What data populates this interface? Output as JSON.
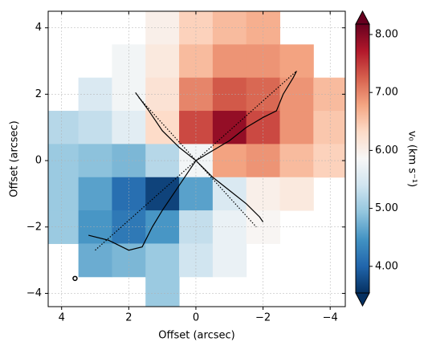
{
  "chart_data": {
    "type": "velocity_map",
    "xlabel": "Offset (arcsec)",
    "ylabel": "Offset (arcsec)",
    "colorbar_label": "v₀ (km s⁻¹)",
    "colormap": "RdBu_r",
    "xlim": [
      4.4,
      -4.45
    ],
    "ylim": [
      -4.4,
      4.5
    ],
    "xticks": [
      4,
      2,
      0,
      {
        "value": -2,
        "label": "−2"
      },
      {
        "value": -4,
        "label": "−4"
      }
    ],
    "yticks": [
      {
        "value": -4,
        "label": "−4"
      },
      {
        "value": -2,
        "label": "−2"
      },
      0,
      2,
      4
    ],
    "clim": [
      3.54,
      8.18
    ],
    "cticks": [
      {
        "value": 4,
        "label": "4.00"
      },
      {
        "value": 5,
        "label": "5.00"
      },
      {
        "value": 6,
        "label": "6.00"
      },
      {
        "value": 7,
        "label": "7.00"
      },
      {
        "value": 8,
        "label": "8.00"
      }
    ],
    "grid": true,
    "map": {
      "x": [
        4,
        3,
        2,
        1,
        0,
        -1,
        -2,
        -3,
        -4
      ],
      "y": [
        4,
        3,
        2,
        1,
        0,
        -1,
        -2,
        -3,
        -4
      ],
      "values": [
        [
          null,
          null,
          null,
          6.0,
          6.4,
          6.6,
          6.7,
          null,
          null
        ],
        [
          null,
          null,
          5.8,
          6.1,
          6.6,
          6.9,
          6.9,
          6.8,
          null
        ],
        [
          null,
          5.5,
          5.8,
          6.2,
          7.0,
          7.3,
          7.2,
          6.9,
          6.6
        ],
        [
          5.2,
          5.3,
          5.6,
          6.3,
          7.4,
          7.9,
          7.4,
          6.9,
          6.5
        ],
        [
          5.0,
          4.9,
          4.8,
          5.2,
          5.8,
          6.8,
          6.9,
          6.6,
          6.4
        ],
        [
          5.0,
          4.6,
          4.1,
          3.7,
          4.6,
          5.5,
          6.0,
          6.1,
          null
        ],
        [
          5.0,
          4.5,
          4.2,
          4.5,
          5.3,
          5.7,
          5.9,
          null,
          null
        ],
        [
          null,
          4.7,
          4.8,
          5.0,
          5.4,
          5.7,
          null,
          null,
          null
        ],
        [
          null,
          null,
          null,
          5.0,
          null,
          null,
          null,
          null,
          null
        ]
      ]
    },
    "curves": [
      {
        "style": "solid",
        "color": "#000000",
        "x": [
          3.2,
          2.6,
          2.0,
          1.6,
          1.3,
          1.0,
          0.6,
          0.2,
          0,
          -0.5,
          -1.0,
          -1.5,
          -2.0,
          -2.4,
          -2.6,
          -2.9,
          -3.0
        ],
        "y": [
          -2.25,
          -2.4,
          -2.7,
          -2.6,
          -2.0,
          -1.5,
          -0.9,
          -0.3,
          0,
          0.3,
          0.6,
          1.0,
          1.3,
          1.5,
          2.0,
          2.5,
          2.7
        ]
      },
      {
        "style": "dotted",
        "color": "#000000",
        "x": [
          3.0,
          -3.0
        ],
        "y": [
          -2.7,
          2.7
        ]
      },
      {
        "style": "solid",
        "color": "#000000",
        "x": [
          1.8,
          1.4,
          1.0,
          0.5,
          0,
          -0.5,
          -1.0,
          -1.5,
          -1.9,
          -2.0
        ],
        "y": [
          2.05,
          1.5,
          0.9,
          0.4,
          0,
          -0.5,
          -0.9,
          -1.3,
          -1.7,
          -1.85
        ]
      },
      {
        "style": "dotted",
        "color": "#000000",
        "x": [
          1.7,
          -1.8
        ],
        "y": [
          1.9,
          -2.0
        ]
      }
    ],
    "beam": {
      "x": 3.6,
      "y": -3.55
    }
  }
}
